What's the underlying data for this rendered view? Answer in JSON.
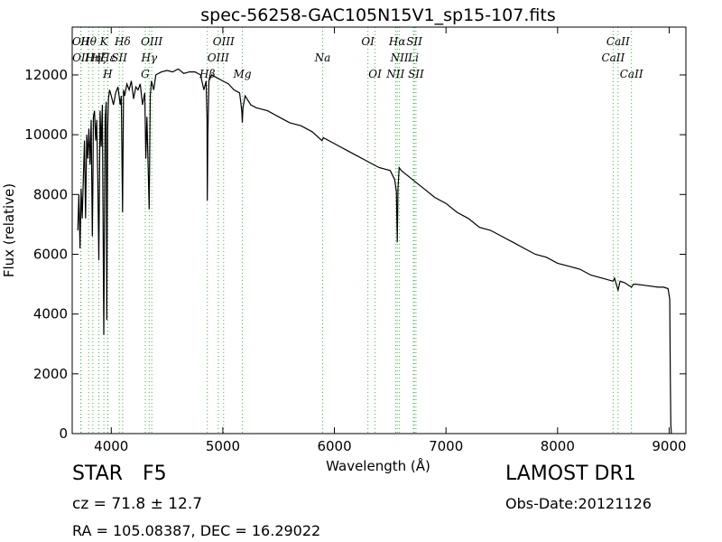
{
  "chart_data": {
    "type": "line",
    "title": "spec-56258-GAC105N15V1_sp15-107.fits",
    "xlabel": "Wavelength (Å)",
    "ylabel": "Flux (relative)",
    "xlim": [
      3650,
      9150
    ],
    "ylim": [
      0,
      13600
    ],
    "xticks": [
      4000,
      5000,
      6000,
      7000,
      8000,
      9000
    ],
    "yticks": [
      0,
      2000,
      4000,
      6000,
      8000,
      10000,
      12000
    ],
    "grid": false,
    "series": [
      {
        "x": [
          3700,
          3710,
          3720,
          3730,
          3740,
          3750,
          3760,
          3770,
          3780,
          3790,
          3800,
          3810,
          3820,
          3830,
          3835,
          3840,
          3850,
          3860,
          3870,
          3880,
          3889,
          3900,
          3910,
          3920,
          3933,
          3945,
          3955,
          3960,
          3968,
          3975,
          3985,
          4000,
          4020,
          4040,
          4060,
          4080,
          4090,
          4101,
          4110,
          4120,
          4140,
          4160,
          4180,
          4200,
          4220,
          4240,
          4260,
          4280,
          4300,
          4310,
          4320,
          4340,
          4350,
          4360,
          4380,
          4400,
          4450,
          4500,
          4550,
          4600,
          4650,
          4700,
          4750,
          4800,
          4830,
          4850,
          4858,
          4861,
          4866,
          4875,
          4900,
          4950,
          5000,
          5050,
          5100,
          5150,
          5170,
          5175,
          5180,
          5200,
          5250,
          5300,
          5400,
          5500,
          5600,
          5700,
          5800,
          5890,
          5900,
          6000,
          6100,
          6200,
          6300,
          6400,
          6500,
          6540,
          6555,
          6563,
          6570,
          6580,
          6600,
          6700,
          6800,
          6900,
          7000,
          7100,
          7200,
          7300,
          7400,
          7500,
          7600,
          7700,
          7800,
          7900,
          8000,
          8100,
          8200,
          8300,
          8400,
          8498,
          8510,
          8542,
          8560,
          8600,
          8662,
          8680,
          8700,
          8800,
          8900,
          8950,
          8990,
          9005,
          9010,
          9015,
          9020
        ],
        "y": [
          6800,
          8000,
          6200,
          8200,
          7200,
          8600,
          9800,
          7200,
          10000,
          9200,
          10200,
          9000,
          10500,
          6600,
          8200,
          10600,
          10800,
          9800,
          10500,
          8400,
          5800,
          10800,
          9600,
          11000,
          3300,
          10500,
          11100,
          3800,
          10200,
          11200,
          11500,
          11300,
          11000,
          11400,
          11600,
          11000,
          11300,
          7400,
          11500,
          11300,
          11700,
          11500,
          11800,
          11200,
          11600,
          11500,
          11700,
          11000,
          11400,
          9200,
          10600,
          7500,
          11300,
          11800,
          11500,
          12000,
          12100,
          12150,
          12100,
          12200,
          12050,
          12100,
          12100,
          12000,
          11500,
          11800,
          10500,
          7800,
          10000,
          11800,
          12000,
          11900,
          11800,
          11700,
          11500,
          11400,
          10800,
          10400,
          10900,
          11300,
          11000,
          10900,
          10800,
          10600,
          10400,
          10300,
          10100,
          9800,
          9900,
          9700,
          9500,
          9300,
          9100,
          8900,
          8800,
          8500,
          8100,
          6400,
          8200,
          8900,
          8800,
          8500,
          8200,
          7900,
          7700,
          7400,
          7200,
          6900,
          6800,
          6600,
          6400,
          6200,
          6000,
          5900,
          5700,
          5600,
          5500,
          5300,
          5200,
          5100,
          5200,
          4800,
          5100,
          5050,
          4900,
          5000,
          5000,
          4950,
          4900,
          4900,
          4850,
          4500,
          2000,
          300,
          0
        ]
      }
    ],
    "spectral_lines": [
      {
        "label": "OII",
        "wavelength": 3727,
        "row": "top"
      },
      {
        "label": "OII",
        "wavelength": 3729,
        "row": "mid"
      },
      {
        "label": "Hθ",
        "wavelength": 3797,
        "row": "top"
      },
      {
        "label": "Hη",
        "wavelength": 3835,
        "row": "mid"
      },
      {
        "label": "Hζ",
        "wavelength": 3889,
        "row": "mid"
      },
      {
        "label": "Hε",
        "wavelength": 3970,
        "row": "mid"
      },
      {
        "label": "K",
        "wavelength": 3934,
        "row": "top"
      },
      {
        "label": "H",
        "wavelength": 3968,
        "row": "low"
      },
      {
        "label": "SII",
        "wavelength": 4072,
        "row": "mid"
      },
      {
        "label": "Hδ",
        "wavelength": 4102,
        "row": "top"
      },
      {
        "label": "G",
        "wavelength": 4305,
        "row": "low"
      },
      {
        "label": "Hγ",
        "wavelength": 4340,
        "row": "mid"
      },
      {
        "label": "OIII",
        "wavelength": 4363,
        "row": "top"
      },
      {
        "label": "Hβ",
        "wavelength": 4861,
        "row": "low"
      },
      {
        "label": "OIII",
        "wavelength": 4959,
        "row": "mid"
      },
      {
        "label": "OIII",
        "wavelength": 5007,
        "row": "top"
      },
      {
        "label": "Mg",
        "wavelength": 5175,
        "row": "low"
      },
      {
        "label": "Na",
        "wavelength": 5894,
        "row": "mid"
      },
      {
        "label": "OI",
        "wavelength": 6300,
        "row": "top"
      },
      {
        "label": "OI",
        "wavelength": 6364,
        "row": "low"
      },
      {
        "label": "NII",
        "wavelength": 6548,
        "row": "low"
      },
      {
        "label": "Hα",
        "wavelength": 6563,
        "row": "top"
      },
      {
        "label": "NII",
        "wavelength": 6583,
        "row": "mid"
      },
      {
        "label": "Li",
        "wavelength": 6708,
        "row": "mid"
      },
      {
        "label": "SII",
        "wavelength": 6716,
        "row": "top"
      },
      {
        "label": "SII",
        "wavelength": 6731,
        "row": "low"
      },
      {
        "label": "CaII",
        "wavelength": 8498,
        "row": "mid"
      },
      {
        "label": "CaII",
        "wavelength": 8542,
        "row": "top"
      },
      {
        "label": "CaII",
        "wavelength": 8662,
        "row": "low"
      }
    ],
    "line_color": "#000000",
    "marker_color": "#33bb33"
  },
  "info": {
    "class_label": "STAR",
    "subclass_label": "F5",
    "redshift": "cz = 71.8 ± 12.7",
    "coords": "RA = 105.08387, DEC = 16.29022",
    "survey": "LAMOST DR1",
    "obs_date": "Obs-Date:20121126"
  }
}
